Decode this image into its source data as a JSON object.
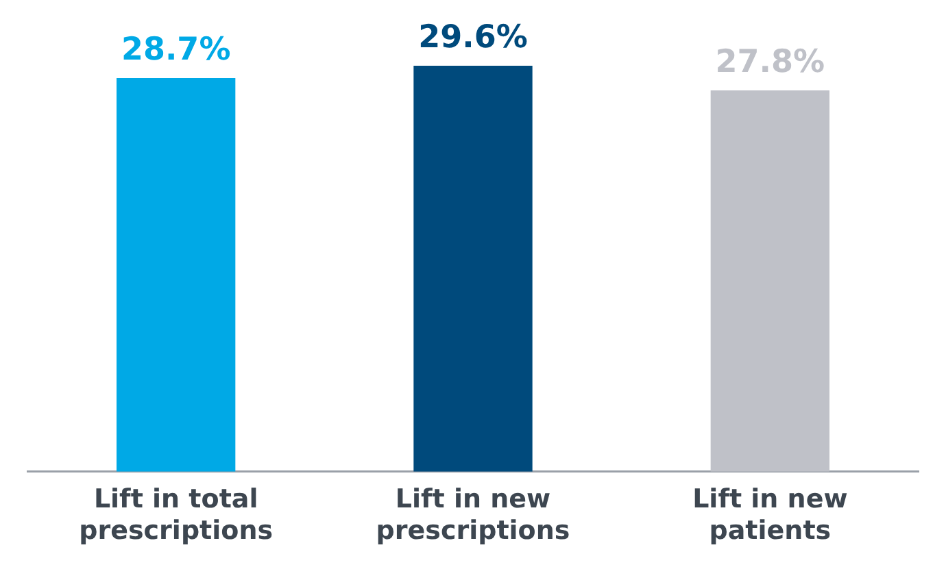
{
  "chart_data": {
    "type": "bar",
    "categories": [
      "Lift in total prescriptions",
      "Lift in new prescriptions",
      "Lift in new patients"
    ],
    "values": [
      28.7,
      29.6,
      27.8
    ],
    "value_labels": [
      "28.7%",
      "29.6%",
      "27.8%"
    ],
    "colors": [
      "#00a9e6",
      "#004a7c",
      "#bfc1c8"
    ],
    "data_labels": true,
    "tick_labels": "x",
    "grid": false,
    "legend": false
  }
}
